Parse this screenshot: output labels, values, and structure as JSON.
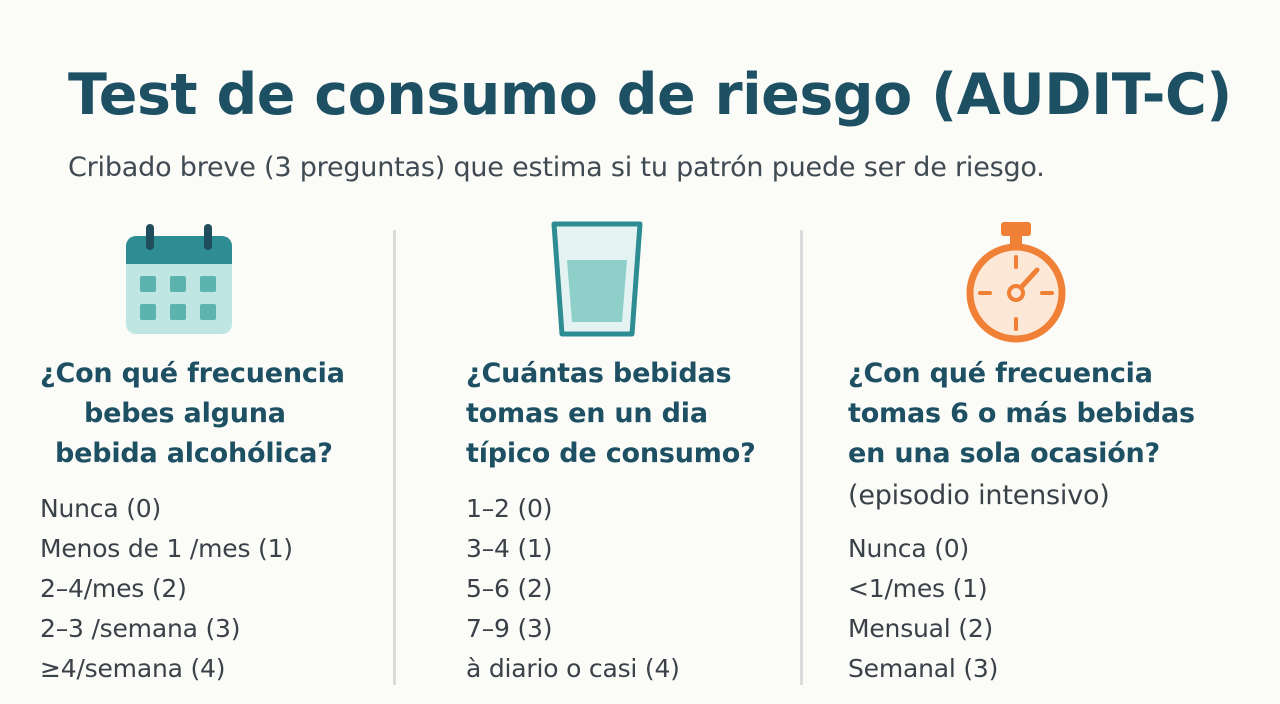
{
  "title": "Test de consumo de riesgo (AUDIT-C)",
  "subtitle": "Cribado breve (3 preguntas) que estima si tu patrón puede ser de riesgo.",
  "colors": {
    "title": "#1e5064",
    "teal": "#2e8c93",
    "teal_light": "#bfe6e3",
    "orange": "#ef8035"
  },
  "columns": [
    {
      "icon": "calendar-icon",
      "question_lines": [
        "¿Con qué frecuencia",
        "bebes alguna",
        "bebida alcohólica?"
      ],
      "options": [
        "Nunca (0)",
        "Menos de 1 /mes (1)",
        "2–4/mes (2)",
        "2–3 /semana (3)",
        "≥4/semana (4)"
      ]
    },
    {
      "icon": "glass-icon",
      "question_lines": [
        "¿Cuántas bebidas",
        "tomas en un dia",
        "típico de consumo?"
      ],
      "options": [
        "1–2 (0)",
        "3–4 (1)",
        "5–6 (2)",
        "7–9 (3)",
        "à diario o casi (4)"
      ]
    },
    {
      "icon": "stopwatch-icon",
      "question_lines": [
        "¿Con qué frecuencia",
        "tomas 6 o más bebidas",
        "en una sola ocasión?"
      ],
      "note": "(episodio intensivo)",
      "options": [
        "Nunca (0)",
        "<1/mes (1)",
        "Mensual (2)",
        "Semanal (3)"
      ]
    }
  ]
}
